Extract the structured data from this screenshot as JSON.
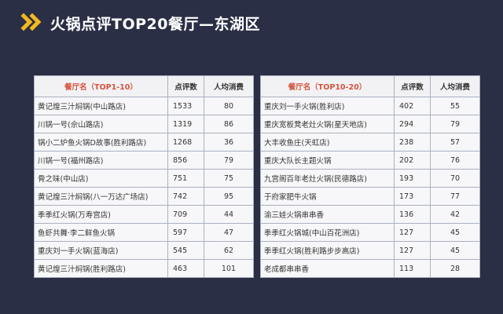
{
  "header": {
    "title": "火锅点评TOP20餐厅—东湖区",
    "icon": "double-chevron-icon",
    "accent": "#f3b81e"
  },
  "tables": [
    {
      "columns": [
        "餐厅名（TOP1-10）",
        "点评数",
        "人均消费"
      ],
      "rows": [
        {
          "name": "黄记煌三汁焖锅(中山路店)",
          "count": "1533",
          "avg": "80"
        },
        {
          "name": "川锅一号(佘山路店)",
          "count": "1319",
          "avg": "86"
        },
        {
          "name": "锅小二炉鱼火锅D故事(胜利路店)",
          "count": "1268",
          "avg": "36"
        },
        {
          "name": "川锅一号(福州路店)",
          "count": "856",
          "avg": "79"
        },
        {
          "name": "骨之味(中山店)",
          "count": "751",
          "avg": "75"
        },
        {
          "name": "黄记煌三汁焖锅(八一万达广场店)",
          "count": "742",
          "avg": "95"
        },
        {
          "name": "季季红火锅(万寿宫店)",
          "count": "709",
          "avg": "44"
        },
        {
          "name": "鱼虾共舞·李二鲜鱼火锅",
          "count": "597",
          "avg": "47"
        },
        {
          "name": "重庆刘一手火锅(蓝海店)",
          "count": "545",
          "avg": "62"
        },
        {
          "name": "黄记煌三汁焖锅(胜利路店)",
          "count": "463",
          "avg": "101"
        }
      ]
    },
    {
      "columns": [
        "餐厅名（TOP10-20）",
        "点评数",
        "人均消费"
      ],
      "rows": [
        {
          "name": "重庆刘一手火锅(胜利店)",
          "count": "402",
          "avg": "55"
        },
        {
          "name": "重庆宽板凳老灶火锅(星天地店)",
          "count": "294",
          "avg": "79"
        },
        {
          "name": "大丰收鱼庄(天虹店)",
          "count": "238",
          "avg": "57"
        },
        {
          "name": "重庆大队长主题火锅",
          "count": "202",
          "avg": "76"
        },
        {
          "name": "九宫阁百年老灶火锅(民德路店)",
          "count": "193",
          "avg": "70"
        },
        {
          "name": "于府家肥牛火锅",
          "count": "173",
          "avg": "77"
        },
        {
          "name": "渝三娃火锅串串香",
          "count": "136",
          "avg": "42"
        },
        {
          "name": "季季红火锅城(中山百花洲店)",
          "count": "127",
          "avg": "45"
        },
        {
          "name": "季季红火锅(胜利路步步高店)",
          "count": "127",
          "avg": "45"
        },
        {
          "name": "老成都串串香",
          "count": "113",
          "avg": "28"
        }
      ]
    }
  ]
}
